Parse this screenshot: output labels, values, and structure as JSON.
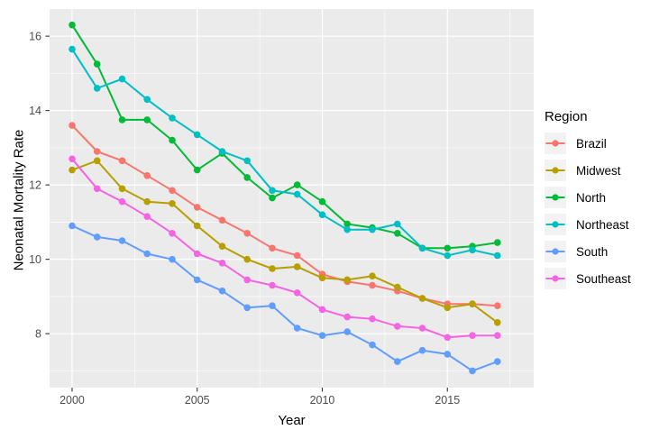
{
  "chart_data": {
    "type": "line",
    "title": "",
    "xlabel": "Year",
    "ylabel": "Neonatal Mortality Rate",
    "legend_title": "Region",
    "legend_position": "right",
    "grid": true,
    "panel_bg": "#EBEBEB",
    "grid_color": "#FFFFFF",
    "legend_key_bg": "#F2F2F2",
    "tick_label_color": "#4D4D4D",
    "tick_mark_color": "#333333",
    "x": [
      2000,
      2001,
      2002,
      2003,
      2004,
      2005,
      2006,
      2007,
      2008,
      2009,
      2010,
      2011,
      2012,
      2013,
      2014,
      2015,
      2016,
      2017
    ],
    "xticks": [
      2000,
      2005,
      2010,
      2015
    ],
    "xticks_minor": [
      2002.5,
      2007.5,
      2012.5,
      2017.5
    ],
    "yticks": [
      8,
      10,
      12,
      14,
      16
    ],
    "yticks_minor": [
      7,
      9,
      11,
      13,
      15
    ],
    "xlim": [
      1999.1,
      2018.45
    ],
    "ylim": [
      6.55,
      16.73
    ],
    "series": [
      {
        "name": "Brazil",
        "color": "#F8766D",
        "values": [
          13.6,
          12.9,
          12.65,
          12.25,
          11.85,
          11.4,
          11.05,
          10.7,
          10.3,
          10.1,
          9.6,
          9.4,
          9.3,
          9.15,
          8.95,
          8.8,
          8.8,
          8.75
        ]
      },
      {
        "name": "Midwest",
        "color": "#B79F00",
        "values": [
          12.4,
          12.65,
          11.9,
          11.55,
          11.5,
          10.9,
          10.35,
          10.0,
          9.75,
          9.8,
          9.5,
          9.45,
          9.55,
          9.25,
          8.95,
          8.7,
          8.8,
          8.3
        ]
      },
      {
        "name": "North",
        "color": "#00BA38",
        "values": [
          16.3,
          15.25,
          13.75,
          13.75,
          13.2,
          12.4,
          12.85,
          12.2,
          11.65,
          12.0,
          11.55,
          10.95,
          10.85,
          10.7,
          10.3,
          10.3,
          10.35,
          10.45
        ]
      },
      {
        "name": "Northeast",
        "color": "#00BFC4",
        "values": [
          15.65,
          14.6,
          14.85,
          14.3,
          13.8,
          13.35,
          12.9,
          12.65,
          11.85,
          11.75,
          11.2,
          10.8,
          10.8,
          10.95,
          10.3,
          10.1,
          10.25,
          10.1
        ]
      },
      {
        "name": "South",
        "color": "#619CFF",
        "values": [
          10.9,
          10.6,
          10.5,
          10.15,
          10.0,
          9.45,
          9.15,
          8.7,
          8.75,
          8.15,
          7.95,
          8.05,
          7.7,
          7.25,
          7.55,
          7.45,
          7.0,
          7.25
        ]
      },
      {
        "name": "Southeast",
        "color": "#F564E3",
        "values": [
          12.7,
          11.9,
          11.55,
          11.15,
          10.7,
          10.15,
          9.9,
          9.45,
          9.3,
          9.1,
          8.65,
          8.45,
          8.4,
          8.2,
          8.15,
          7.9,
          7.95,
          7.95
        ]
      }
    ]
  }
}
